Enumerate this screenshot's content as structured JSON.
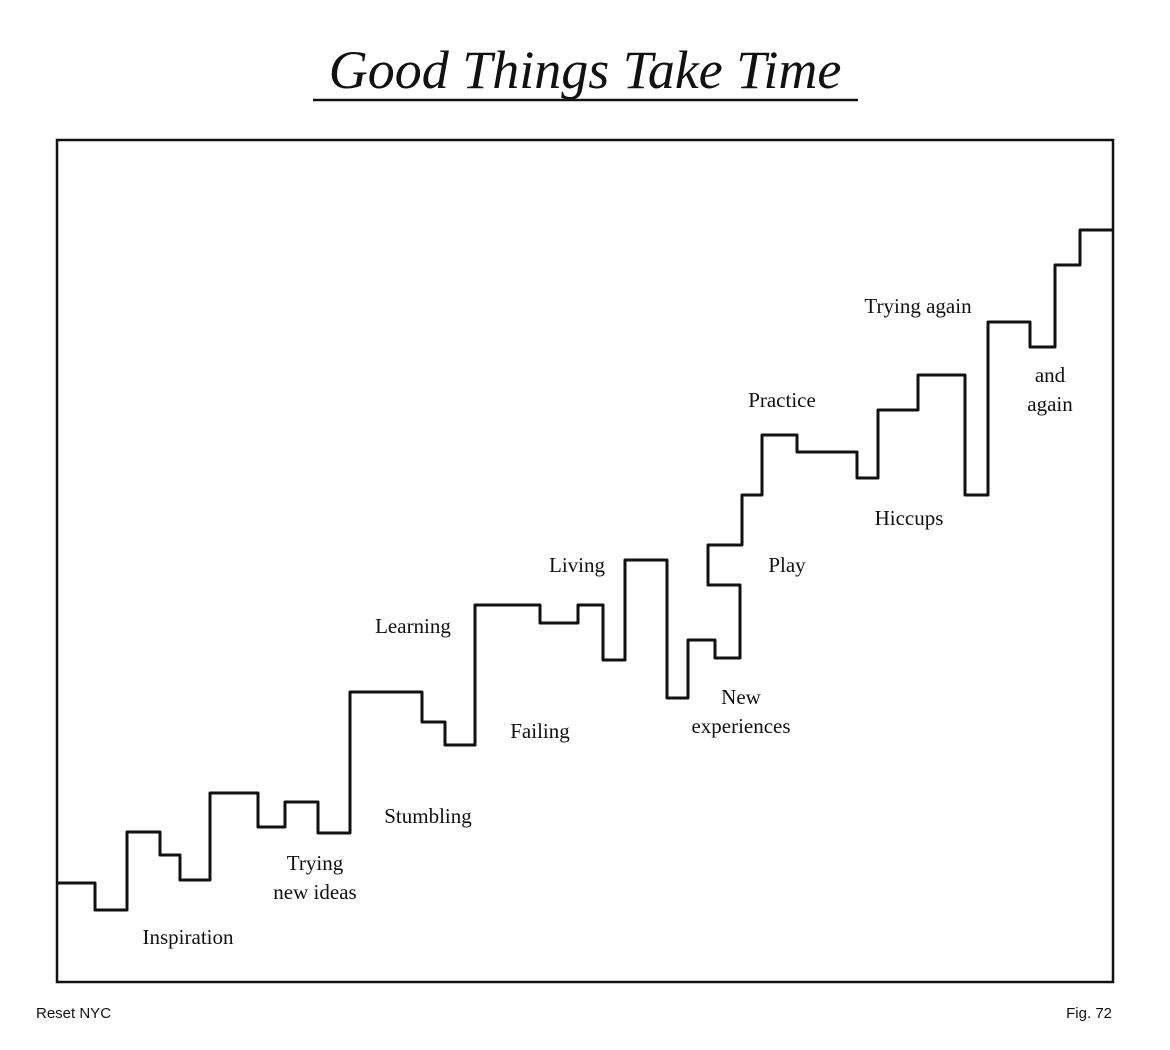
{
  "header": {
    "title": "Good Things Take Time"
  },
  "labels": [
    {
      "lines": [
        "Inspiration"
      ]
    },
    {
      "lines": [
        "Trying",
        "new ideas"
      ]
    },
    {
      "lines": [
        "Stumbling"
      ]
    },
    {
      "lines": [
        "Learning"
      ]
    },
    {
      "lines": [
        "Failing"
      ]
    },
    {
      "lines": [
        "Living"
      ]
    },
    {
      "lines": [
        "New",
        "experiences"
      ]
    },
    {
      "lines": [
        "Play"
      ]
    },
    {
      "lines": [
        "Practice"
      ]
    },
    {
      "lines": [
        "Hiccups"
      ]
    },
    {
      "lines": [
        "Trying again"
      ]
    },
    {
      "lines": [
        "and",
        "again"
      ]
    }
  ],
  "footer": {
    "left": "Reset NYC",
    "right": "Fig. 72"
  }
}
